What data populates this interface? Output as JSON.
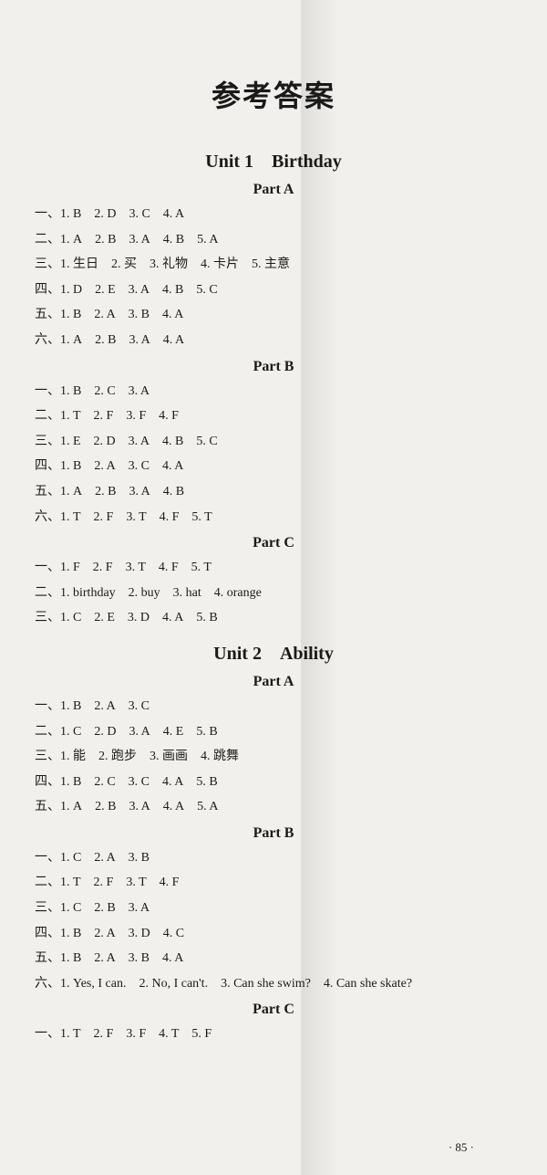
{
  "title": "参考答案",
  "page_number": "· 85 ·",
  "units": [
    {
      "header": "Unit 1 Birthday",
      "parts": [
        {
          "header": "Part A",
          "lines": [
            "一、1. B 2. D 3. C 4. A",
            "二、1. A 2. B 3. A 4. B 5. A",
            "三、1. 生日 2. 买 3. 礼物 4. 卡片 5. 主意",
            "四、1. D 2. E 3. A 4. B 5. C",
            "五、1. B 2. A 3. B 4. A",
            "六、1. A 2. B 3. A 4. A"
          ]
        },
        {
          "header": "Part B",
          "lines": [
            "一、1. B 2. C 3. A",
            "二、1. T 2. F 3. F 4. F",
            "三、1. E 2. D 3. A 4. B 5. C",
            "四、1. B 2. A 3. C 4. A",
            "五、1. A 2. B 3. A 4. B",
            "六、1. T 2. F 3. T 4. F 5. T"
          ]
        },
        {
          "header": "Part C",
          "lines": [
            "一、1. F 2. F 3. T 4. F 5. T",
            "二、1. birthday 2. buy 3. hat 4. orange",
            "三、1. C 2. E 3. D 4. A 5. B"
          ]
        }
      ]
    },
    {
      "header": "Unit 2 Ability",
      "parts": [
        {
          "header": "Part A",
          "lines": [
            "一、1. B 2. A 3. C",
            "二、1. C 2. D 3. A 4. E 5. B",
            "三、1. 能 2. 跑步 3. 画画 4. 跳舞",
            "四、1. B 2. C 3. C 4. A 5. B",
            "五、1. A 2. B 3. A 4. A 5. A"
          ]
        },
        {
          "header": "Part B",
          "lines": [
            "一、1. C 2. A 3. B",
            "二、1. T 2. F 3. T 4. F",
            "三、1. C 2. B 3. A",
            "四、1. B 2. A 3. D 4. C",
            "五、1. B 2. A 3. B 4. A",
            "六、1. Yes, I can. 2. No, I can't. 3. Can she swim? 4. Can she skate?"
          ]
        },
        {
          "header": "Part C",
          "lines": [
            "一、1. T 2. F 3. F 4. T 5. F"
          ]
        }
      ]
    }
  ]
}
